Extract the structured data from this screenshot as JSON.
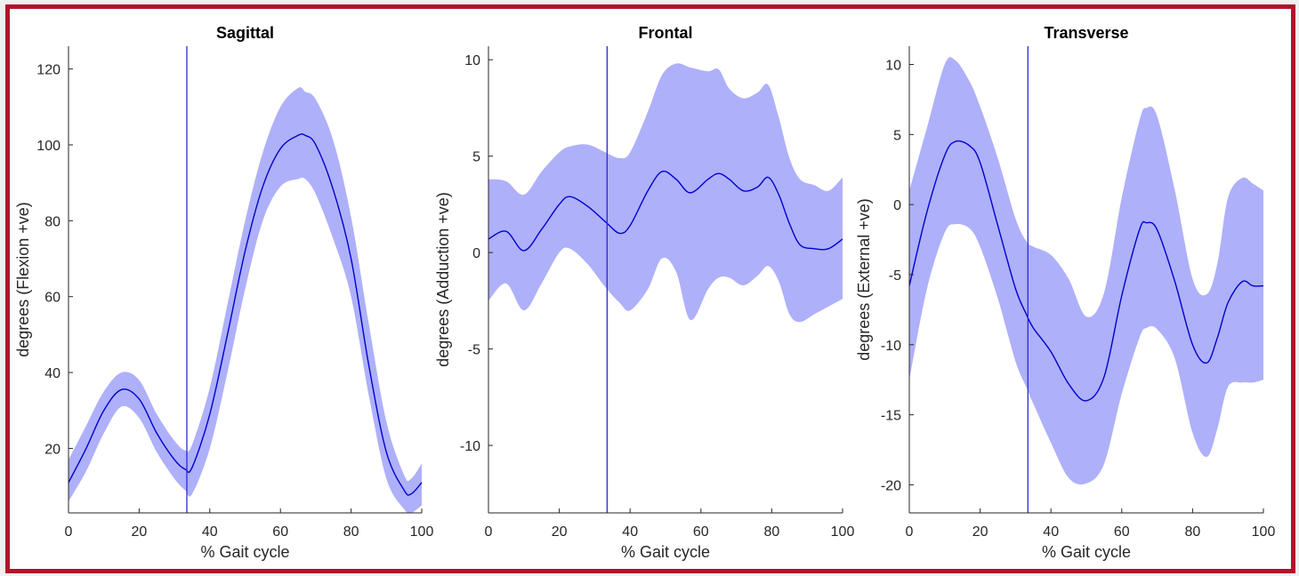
{
  "chart_data": [
    {
      "type": "line",
      "title": "Sagittal",
      "xlabel": "% Gait cycle",
      "ylabel": "degrees (Flexion +ve)",
      "xlim": [
        0,
        100
      ],
      "ylim": [
        3,
        126
      ],
      "xticks": [
        0,
        20,
        40,
        60,
        80,
        100
      ],
      "yticks": [
        20,
        40,
        60,
        80,
        100,
        120
      ],
      "vline_x": 33.5,
      "mean_color": "#0000cc",
      "band_color": "#aeb0fa",
      "series": [
        {
          "x": [
            0,
            5,
            10,
            15,
            20,
            25,
            30,
            33,
            35,
            40,
            45,
            50,
            55,
            60,
            65,
            67,
            70,
            75,
            80,
            85,
            90,
            95,
            97,
            100
          ],
          "mean": [
            11,
            20,
            30,
            35.5,
            33,
            24,
            17,
            14.5,
            15,
            29,
            50,
            72,
            89,
            99,
            102.5,
            102.5,
            100,
            88,
            70,
            42,
            19,
            9,
            8,
            11
          ],
          "upper": [
            17,
            26,
            35,
            40,
            38,
            29,
            22,
            19.5,
            21,
            36,
            58,
            80,
            98,
            110,
            115,
            114,
            112,
            101,
            81,
            53,
            27,
            13,
            12,
            16
          ],
          "lower": [
            6,
            14,
            24,
            31,
            28,
            19,
            12,
            9,
            8,
            20,
            40,
            62,
            80,
            89,
            91,
            91,
            87,
            75,
            60,
            34,
            12,
            4,
            3,
            5
          ]
        }
      ]
    },
    {
      "type": "line",
      "title": "Frontal",
      "xlabel": "% Gait cycle",
      "ylabel": "degrees (Adduction +ve)",
      "xlim": [
        0,
        100
      ],
      "ylim": [
        -13.5,
        10.7
      ],
      "xticks": [
        0,
        20,
        40,
        60,
        80,
        100
      ],
      "yticks": [
        -10,
        -5,
        0,
        5,
        10
      ],
      "vline_x": 33.5,
      "mean_color": "#0000cc",
      "band_color": "#aeb0fa",
      "series": [
        {
          "x": [
            0,
            5,
            10,
            15,
            20,
            23,
            28,
            33,
            37,
            40,
            45,
            49,
            53,
            57,
            62,
            65,
            68,
            72,
            76,
            79,
            82,
            85,
            88,
            92,
            96,
            100
          ],
          "mean": [
            0.7,
            1.1,
            0.1,
            1.2,
            2.5,
            2.9,
            2.4,
            1.6,
            1.0,
            1.4,
            3.2,
            4.2,
            3.8,
            3.1,
            3.8,
            4.1,
            3.8,
            3.2,
            3.4,
            3.9,
            3.0,
            1.5,
            0.4,
            0.2,
            0.2,
            0.7
          ],
          "upper": [
            3.8,
            3.7,
            3.0,
            4.2,
            5.2,
            5.5,
            5.6,
            5.2,
            4.9,
            5.2,
            7.3,
            9.2,
            9.8,
            9.6,
            9.4,
            9.5,
            8.5,
            8.0,
            8.3,
            8.7,
            7.0,
            4.9,
            3.8,
            3.5,
            3.2,
            3.9
          ],
          "lower": [
            -2.5,
            -1.6,
            -3.0,
            -1.6,
            0.0,
            0.2,
            -0.6,
            -1.8,
            -2.6,
            -3.0,
            -1.9,
            -0.3,
            -1.0,
            -3.5,
            -1.9,
            -1.3,
            -1.3,
            -1.7,
            -1.2,
            -0.7,
            -1.5,
            -3.2,
            -3.6,
            -3.2,
            -2.8,
            -2.4
          ]
        }
      ]
    },
    {
      "type": "line",
      "title": "Transverse",
      "xlabel": "% Gait cycle",
      "ylabel": "degrees  (External +ve)",
      "xlim": [
        0,
        100
      ],
      "ylim": [
        -22,
        11.3
      ],
      "xticks": [
        0,
        20,
        40,
        60,
        80,
        100
      ],
      "yticks": [
        -20,
        -15,
        -10,
        -5,
        0,
        5,
        10
      ],
      "vline_x": 33.5,
      "mean_color": "#0000cc",
      "band_color": "#aeb0fa",
      "series": [
        {
          "x": [
            0,
            5,
            10,
            13,
            17,
            20,
            25,
            30,
            33,
            35,
            40,
            45,
            50,
            55,
            60,
            65,
            67,
            70,
            75,
            80,
            84,
            87,
            90,
            94,
            97,
            100
          ],
          "mean": [
            -5.8,
            -0.5,
            3.5,
            4.5,
            4.2,
            3.0,
            -1.5,
            -6.0,
            -7.8,
            -8.8,
            -10.5,
            -12.8,
            -14.0,
            -12.3,
            -6.5,
            -1.8,
            -1.3,
            -1.8,
            -5.5,
            -10.0,
            -11.3,
            -9.5,
            -7.0,
            -5.5,
            -5.8,
            -5.8
          ],
          "upper": [
            1.0,
            5.5,
            10.0,
            10.3,
            8.8,
            7.0,
            3.3,
            -1.0,
            -2.6,
            -3.0,
            -3.6,
            -5.3,
            -8.0,
            -6.3,
            0.5,
            6.0,
            6.9,
            6.3,
            1.0,
            -5.3,
            -6.4,
            -4.2,
            0.5,
            1.9,
            1.5,
            1.0
          ],
          "lower": [
            -12.5,
            -6.0,
            -2.0,
            -1.4,
            -1.7,
            -3.0,
            -6.7,
            -11.2,
            -13.0,
            -14.2,
            -17.0,
            -19.5,
            -19.9,
            -18.5,
            -13.5,
            -9.5,
            -8.8,
            -8.9,
            -11.0,
            -16.3,
            -18.0,
            -16.0,
            -13.0,
            -12.7,
            -12.7,
            -12.5
          ]
        }
      ]
    }
  ]
}
